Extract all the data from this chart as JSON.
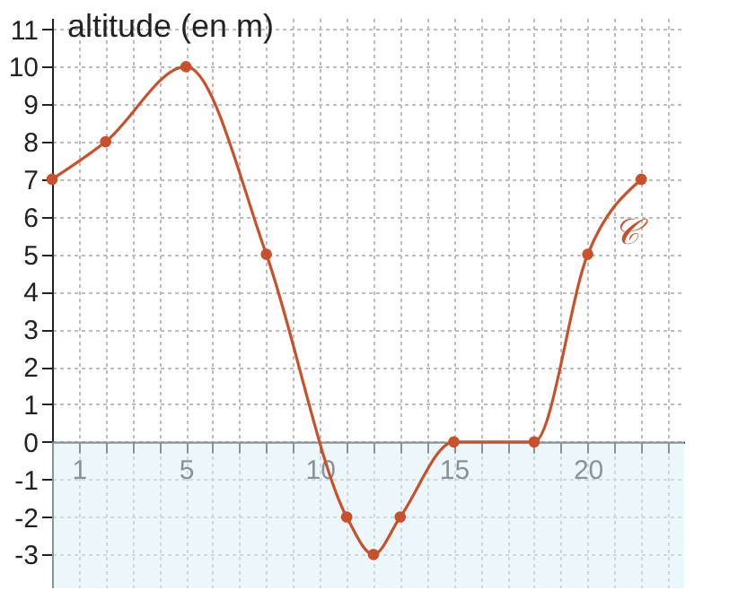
{
  "chart_data": {
    "type": "line",
    "ylabel": "altitude (en m)",
    "x": [
      0,
      2,
      5,
      8,
      11,
      12,
      13,
      15,
      18,
      20,
      22
    ],
    "series": [
      {
        "color": "#c8502a",
        "values": [
          7,
          8,
          10,
          5,
          -2,
          -3,
          -2,
          0,
          0,
          5,
          7
        ]
      }
    ],
    "marker": "circle",
    "xlim": [
      0,
      23.6
    ],
    "ylim": [
      -3.9,
      11.3
    ],
    "xticks": [
      {
        "value": 1,
        "label": "1"
      },
      {
        "value": 2,
        "label": null
      },
      {
        "value": 3,
        "label": null
      },
      {
        "value": 4,
        "label": null
      },
      5,
      {
        "value": 6,
        "label": null
      },
      {
        "value": 7,
        "label": null
      },
      {
        "value": 8,
        "label": null
      },
      {
        "value": 9,
        "label": null
      },
      10,
      {
        "value": 11,
        "label": null
      },
      {
        "value": 12,
        "label": null
      },
      {
        "value": 13,
        "label": null
      },
      {
        "value": 14,
        "label": null
      },
      15,
      {
        "value": 16,
        "label": null
      },
      {
        "value": 17,
        "label": null
      },
      {
        "value": 18,
        "label": null
      },
      {
        "value": 19,
        "label": null
      },
      20,
      {
        "value": 21,
        "label": null
      },
      {
        "value": 22,
        "label": null
      },
      {
        "value": 23,
        "label": null
      }
    ],
    "yticks": [
      -3,
      -2,
      -1,
      0,
      1,
      2,
      3,
      4,
      5,
      6,
      7,
      8,
      9,
      10,
      11
    ],
    "grid": true,
    "bands": [
      {
        "axis": "y",
        "from": -3.9,
        "to": 0,
        "color": "#dcf0f8"
      }
    ],
    "annotations": [
      "𝒞"
    ]
  }
}
